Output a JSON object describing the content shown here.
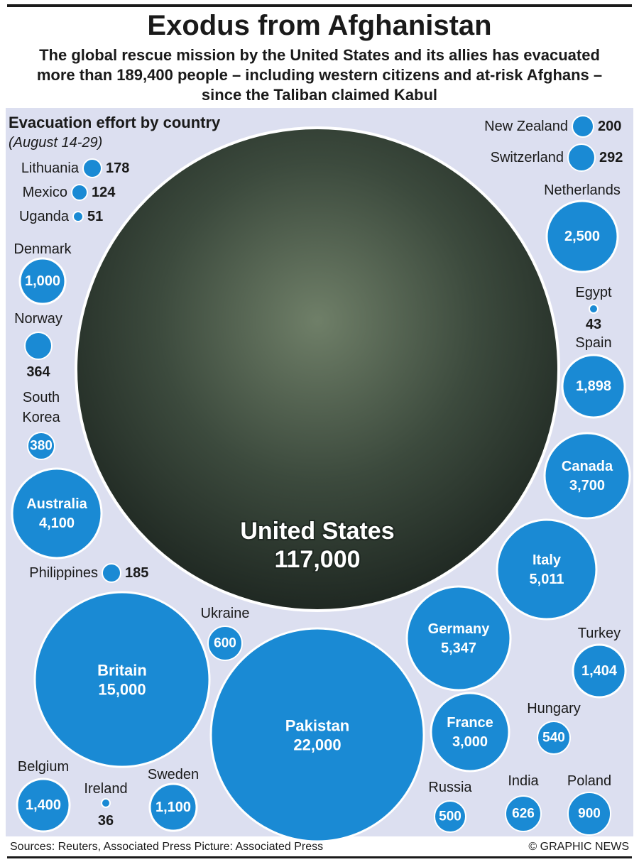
{
  "header": {
    "title": "Exodus from Afghanistan",
    "subtitle": "The global rescue mission by the United States and its allies has evacuated more than 189,400 people – including western citizens and at-risk Afghans – since the Taliban claimed Kabul"
  },
  "section": {
    "title": "Evacuation effort by country",
    "date": "(August 14-29)"
  },
  "footer": {
    "sources": "Sources: Reuters, Associated Press  Picture: Associated Press",
    "credit": "© GRAPHIC NEWS"
  },
  "colors": {
    "bubble": "#1a8ad4",
    "bubble_stroke": "#ffffff",
    "panel": "#dcdff0",
    "photo": "#3a4a3c"
  },
  "chart_data": {
    "type": "bubble",
    "title": "Evacuation effort by country",
    "unit": "people evacuated",
    "series": [
      {
        "country": "United States",
        "value": 117000,
        "label": "117,000"
      },
      {
        "country": "Pakistan",
        "value": 22000,
        "label": "22,000"
      },
      {
        "country": "Britain",
        "value": 15000,
        "label": "15,000"
      },
      {
        "country": "Germany",
        "value": 5347,
        "label": "5,347"
      },
      {
        "country": "Italy",
        "value": 5011,
        "label": "5,011"
      },
      {
        "country": "Australia",
        "value": 4100,
        "label": "4,100"
      },
      {
        "country": "Canada",
        "value": 3700,
        "label": "3,700"
      },
      {
        "country": "France",
        "value": 3000,
        "label": "3,000"
      },
      {
        "country": "Netherlands",
        "value": 2500,
        "label": "2,500"
      },
      {
        "country": "Spain",
        "value": 1898,
        "label": "1,898"
      },
      {
        "country": "Turkey",
        "value": 1404,
        "label": "1,404"
      },
      {
        "country": "Belgium",
        "value": 1400,
        "label": "1,400"
      },
      {
        "country": "Sweden",
        "value": 1100,
        "label": "1,100"
      },
      {
        "country": "Denmark",
        "value": 1000,
        "label": "1,000"
      },
      {
        "country": "Poland",
        "value": 900,
        "label": "900"
      },
      {
        "country": "India",
        "value": 626,
        "label": "626"
      },
      {
        "country": "Ukraine",
        "value": 600,
        "label": "600"
      },
      {
        "country": "Hungary",
        "value": 540,
        "label": "540"
      },
      {
        "country": "Russia",
        "value": 500,
        "label": "500"
      },
      {
        "country": "South Korea",
        "value": 380,
        "label": "380"
      },
      {
        "country": "Norway",
        "value": 364,
        "label": "364"
      },
      {
        "country": "Switzerland",
        "value": 292,
        "label": "292"
      },
      {
        "country": "New Zealand",
        "value": 200,
        "label": "200"
      },
      {
        "country": "Philippines",
        "value": 185,
        "label": "185"
      },
      {
        "country": "Lithuania",
        "value": 178,
        "label": "178"
      },
      {
        "country": "Mexico",
        "value": 124,
        "label": "124"
      },
      {
        "country": "Uganda",
        "value": 51,
        "label": "51"
      },
      {
        "country": "Egypt",
        "value": 43,
        "label": "43"
      },
      {
        "country": "Ireland",
        "value": 36,
        "label": "36"
      }
    ]
  }
}
